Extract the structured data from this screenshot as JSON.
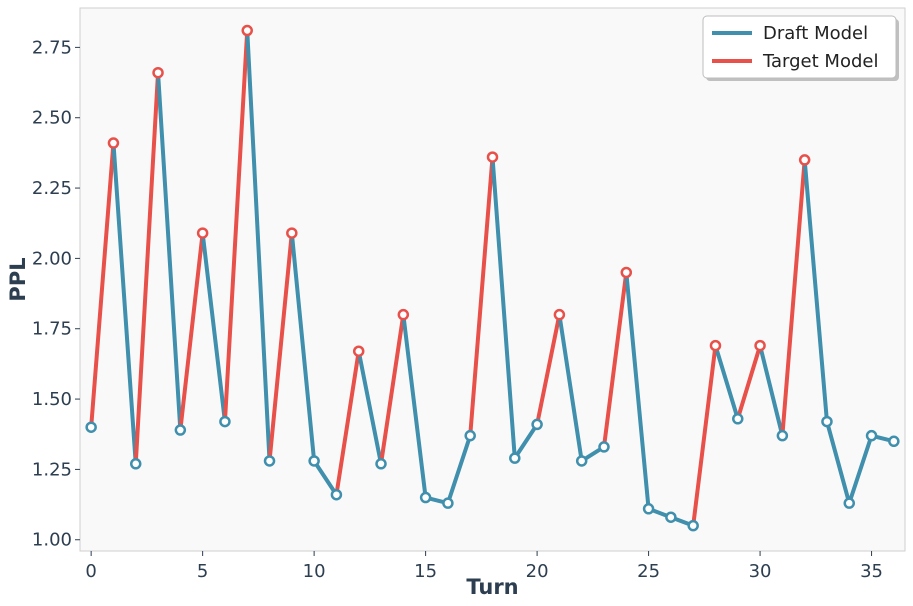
{
  "chart_data": {
    "type": "line",
    "xlabel": "Turn",
    "ylabel": "PPL",
    "xlim": [
      -0.5,
      36.5
    ],
    "ylim": [
      0.96,
      2.89
    ],
    "xticks": [
      0,
      5,
      10,
      15,
      20,
      25,
      30,
      35
    ],
    "yticks": [
      1.0,
      1.25,
      1.5,
      1.75,
      2.0,
      2.25,
      2.5,
      2.75
    ],
    "grid": false,
    "legend_position": "top-right",
    "x": [
      0,
      1,
      2,
      3,
      4,
      5,
      6,
      7,
      8,
      9,
      10,
      11,
      12,
      13,
      14,
      15,
      16,
      17,
      18,
      19,
      20,
      21,
      22,
      23,
      24,
      25,
      26,
      27,
      28,
      29,
      30,
      31,
      32,
      33,
      34,
      35,
      36
    ],
    "y": [
      1.4,
      2.41,
      1.27,
      2.66,
      1.39,
      2.09,
      1.42,
      2.81,
      1.28,
      2.09,
      1.28,
      1.16,
      1.67,
      1.27,
      1.8,
      1.15,
      1.13,
      1.37,
      2.36,
      1.29,
      1.41,
      1.8,
      1.28,
      1.33,
      1.95,
      1.11,
      1.08,
      1.05,
      1.69,
      1.43,
      1.69,
      1.37,
      2.35,
      1.42,
      1.13,
      1.37,
      1.35
    ],
    "model": [
      "draft",
      "target",
      "draft",
      "target",
      "draft",
      "target",
      "draft",
      "target",
      "draft",
      "target",
      "draft",
      "draft",
      "target",
      "draft",
      "target",
      "draft",
      "draft",
      "draft",
      "target",
      "draft",
      "draft",
      "target",
      "draft",
      "draft",
      "target",
      "draft",
      "draft",
      "draft",
      "target",
      "draft",
      "target",
      "draft",
      "target",
      "draft",
      "draft",
      "draft",
      "draft"
    ],
    "series": [
      {
        "name": "Draft Model",
        "key": "draft",
        "color": "#3f8fad"
      },
      {
        "name": "Target Model",
        "key": "target",
        "color": "#e8504a"
      }
    ],
    "background_color": "#f9f9f9",
    "axis_text_color": "#2c3e50"
  }
}
